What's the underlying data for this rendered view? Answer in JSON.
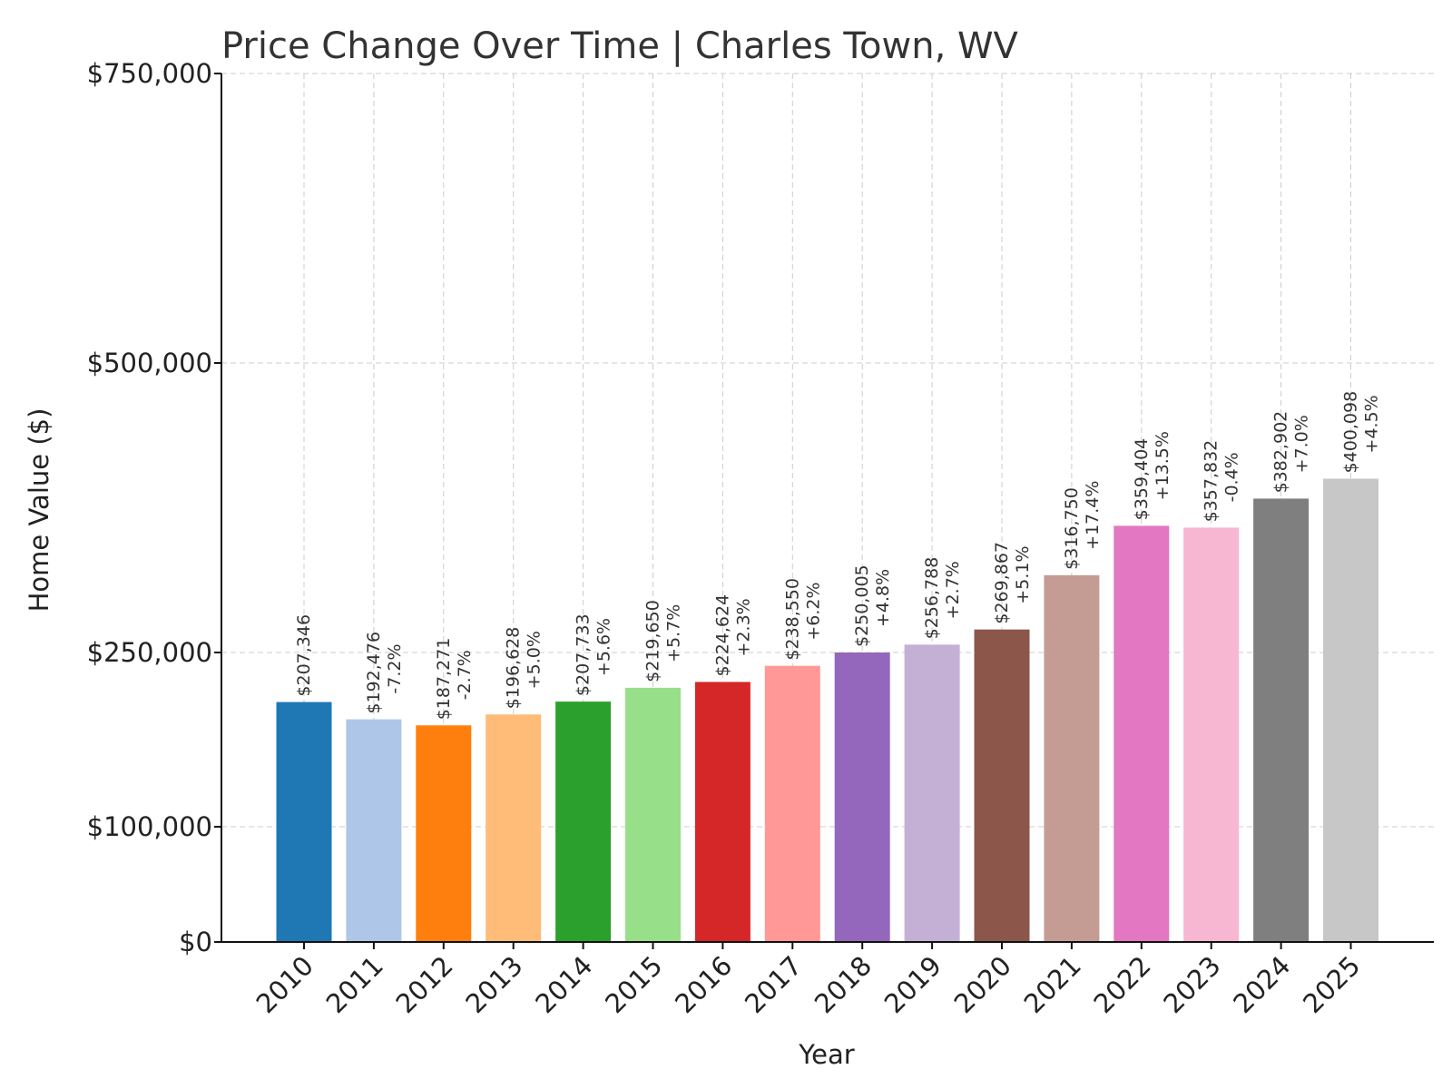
{
  "chart_data": {
    "type": "bar",
    "title": "Price Change Over Time | Charles Town, WV",
    "xlabel": "Year",
    "ylabel": "Home Value ($)",
    "ylim": [
      0,
      750000
    ],
    "yscale": "piecewise-linear",
    "yticks": [
      {
        "value": 0,
        "label": "$0"
      },
      {
        "value": 100000,
        "label": "$100,000"
      },
      {
        "value": 250000,
        "label": "$250,000"
      },
      {
        "value": 500000,
        "label": "$500,000"
      },
      {
        "value": 750000,
        "label": "$750,000"
      }
    ],
    "grid": true,
    "categories": [
      "2010",
      "2011",
      "2012",
      "2013",
      "2014",
      "2015",
      "2016",
      "2017",
      "2018",
      "2019",
      "2020",
      "2021",
      "2022",
      "2023",
      "2024",
      "2025"
    ],
    "values": [
      207346,
      192476,
      187271,
      196628,
      207733,
      219650,
      224624,
      238550,
      250005,
      256788,
      269867,
      316750,
      359404,
      357832,
      382902,
      400098
    ],
    "value_labels": [
      "$207,346",
      "$192,476",
      "$187,271",
      "$196,628",
      "$207,733",
      "$219,650",
      "$224,624",
      "$238,550",
      "$250,005",
      "$256,788",
      "$269,867",
      "$316,750",
      "$359,404",
      "$357,832",
      "$382,902",
      "$400,098"
    ],
    "change_labels": [
      "",
      "-7.2%",
      "-2.7%",
      "+5.0%",
      "+5.6%",
      "+5.7%",
      "+2.3%",
      "+6.2%",
      "+4.8%",
      "+2.7%",
      "+5.1%",
      "+17.4%",
      "+13.5%",
      "-0.4%",
      "+7.0%",
      "+4.5%"
    ],
    "colors": [
      "#1f77b4",
      "#aec7e8",
      "#ff7f0e",
      "#ffbb78",
      "#2ca02c",
      "#98df8a",
      "#d62728",
      "#ff9896",
      "#9467bd",
      "#c5b0d5",
      "#8c564b",
      "#c49c94",
      "#e377c2",
      "#f7b6d2",
      "#7f7f7f",
      "#c7c7c7"
    ]
  }
}
